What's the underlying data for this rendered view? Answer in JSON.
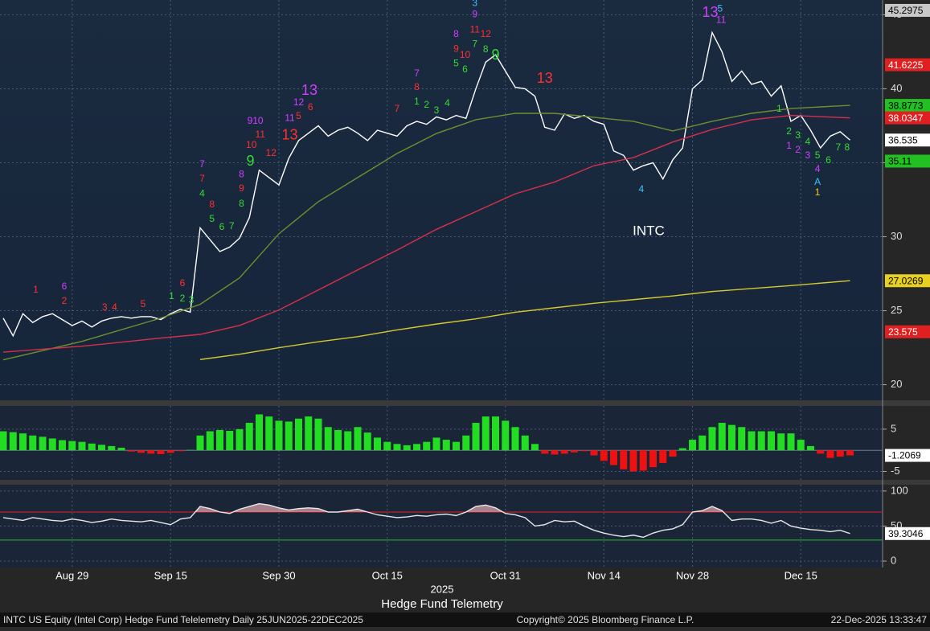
{
  "chart_data": [
    {
      "type": "line",
      "title": "INTC",
      "ylim": [
        19,
        46
      ],
      "yticks": [
        20,
        25,
        30,
        35,
        40,
        45
      ],
      "grid": true,
      "series": [
        {
          "color": "#ffffff",
          "values": [
            24.5,
            23.3,
            24.8,
            24.2,
            24.6,
            24.8,
            24.4,
            24.0,
            24.3,
            23.9,
            24.3,
            24.5,
            24.6,
            24.5,
            24.6,
            24.6,
            24.4,
            24.8,
            25.1,
            24.9,
            30.6,
            29.8,
            29.0,
            29.3,
            29.9,
            31.3,
            34.5,
            34.0,
            33.5,
            35.3,
            36.5,
            37.0,
            37.5,
            36.8,
            37.2,
            37.4,
            37.0,
            36.5,
            37.2,
            37.0,
            36.8,
            37.5,
            37.8,
            37.6,
            38.1,
            37.9,
            38.2,
            38.0,
            40.0,
            41.8,
            42.3,
            41.2,
            40.1,
            40.0,
            39.5,
            37.4,
            37.2,
            38.3,
            38.0,
            38.2,
            37.8,
            37.6,
            35.8,
            35.5,
            34.5,
            34.8,
            35.0,
            33.9,
            35.2,
            36.0,
            40.0,
            40.6,
            43.8,
            42.5,
            40.5,
            41.2,
            40.3,
            40.5,
            39.5,
            40.2,
            37.8,
            38.2,
            37.2,
            36.0,
            36.8,
            37.1,
            36.535
          ]
        },
        {
          "color": "#6f8f2f",
          "x": [
            0,
            8,
            16,
            20,
            24,
            28,
            32,
            36,
            40,
            44,
            48,
            52,
            56,
            60,
            64,
            68,
            72,
            76,
            80,
            86
          ],
          "values": [
            21.68,
            22.93,
            24.5,
            25.43,
            27.22,
            30.2,
            32.37,
            34.0,
            35.63,
            36.98,
            37.91,
            38.34,
            38.34,
            38.07,
            37.8,
            37.15,
            37.8,
            38.34,
            38.67,
            38.88
          ]
        },
        {
          "color": "#d8304a",
          "x": [
            0,
            8,
            16,
            20,
            24,
            28,
            32,
            36,
            40,
            44,
            48,
            52,
            56,
            60,
            64,
            68,
            72,
            76,
            80,
            86
          ],
          "values": [
            22.2,
            22.6,
            23.15,
            23.4,
            24.0,
            25.05,
            26.4,
            27.76,
            29.1,
            30.5,
            31.7,
            32.9,
            33.7,
            34.8,
            35.35,
            36.4,
            37.25,
            37.9,
            38.2,
            38.03
          ]
        },
        {
          "color": "#d8c830",
          "x": [
            20,
            24,
            28,
            32,
            36,
            40,
            44,
            48,
            52,
            56,
            60,
            64,
            68,
            72,
            76,
            80,
            86
          ],
          "values": [
            21.7,
            22.06,
            22.5,
            22.9,
            23.25,
            23.7,
            24.1,
            24.45,
            24.9,
            25.2,
            25.5,
            25.75,
            26.0,
            26.3,
            26.5,
            26.7,
            27.03
          ]
        }
      ],
      "price_tags": [
        {
          "value": 45.2975,
          "color": "#c8c8c8",
          "text_color": "#000000"
        },
        {
          "value": 41.6225,
          "color": "#e02020",
          "text_color": "#ffffff"
        },
        {
          "value": 38.8773,
          "color": "#22c022",
          "text_color": "#000000"
        },
        {
          "value": 38.0347,
          "color": "#e02020",
          "text_color": "#ffffff"
        },
        {
          "value": 36.535,
          "color": "#ffffff",
          "text_color": "#000000"
        },
        {
          "value": 35.11,
          "color": "#22c022",
          "text_color": "#000000"
        },
        {
          "value": 27.0269,
          "color": "#e8d020",
          "text_color": "#000000"
        },
        {
          "value": 23.575,
          "color": "#e02020",
          "text_color": "#ffffff"
        }
      ],
      "annotations": [
        {
          "text": "1",
          "x": 3.3,
          "y": 26.4,
          "color": "#ff3030"
        },
        {
          "text": "6",
          "x": 6.2,
          "y": 26.62,
          "color": "#d040ff"
        },
        {
          "text": "2",
          "x": 6.2,
          "y": 25.64,
          "color": "#ff3030"
        },
        {
          "text": "3",
          "x": 10.3,
          "y": 25.21,
          "color": "#ff3030"
        },
        {
          "text": "4",
          "x": 11.3,
          "y": 25.21,
          "color": "#ff3030"
        },
        {
          "text": "5",
          "x": 14.2,
          "y": 25.43,
          "color": "#ff3030"
        },
        {
          "text": "6",
          "x": 18.2,
          "y": 26.84,
          "color": "#ff3030"
        },
        {
          "text": "1",
          "x": 17.1,
          "y": 25.97,
          "color": "#33dd33"
        },
        {
          "text": "2",
          "x": 18.2,
          "y": 25.8,
          "color": "#33dd33"
        },
        {
          "text": "3",
          "x": 19.1,
          "y": 25.7,
          "color": "#33dd33"
        },
        {
          "text": "7",
          "x": 20.2,
          "y": 34.87,
          "color": "#d040ff"
        },
        {
          "text": "7",
          "x": 20.2,
          "y": 33.89,
          "color": "#ff3030"
        },
        {
          "text": "4",
          "x": 20.2,
          "y": 32.9,
          "color": "#33dd33"
        },
        {
          "text": "8",
          "x": 21.2,
          "y": 32.15,
          "color": "#ff3030"
        },
        {
          "text": "5",
          "x": 21.2,
          "y": 31.18,
          "color": "#33dd33"
        },
        {
          "text": "6",
          "x": 22.2,
          "y": 30.63,
          "color": "#33dd33"
        },
        {
          "text": "7",
          "x": 23.2,
          "y": 30.69,
          "color": "#33dd33"
        },
        {
          "text": "8",
          "x": 24.2,
          "y": 32.2,
          "color": "#33dd33"
        },
        {
          "text": "9",
          "x": 24.2,
          "y": 33.24,
          "color": "#ff3030"
        },
        {
          "text": "8",
          "x": 24.2,
          "y": 34.2,
          "color": "#d040ff"
        },
        {
          "text": "9",
          "x": 25.1,
          "y": 35.08,
          "color": "#33dd33"
        },
        {
          "text": "910",
          "x": 25.6,
          "y": 37.8,
          "color": "#d040ff"
        },
        {
          "text": "11",
          "x": 26.1,
          "y": 36.87,
          "color": "#ff3030"
        },
        {
          "text": "10",
          "x": 25.2,
          "y": 36.17,
          "color": "#ff3030"
        },
        {
          "text": "12",
          "x": 27.2,
          "y": 35.63,
          "color": "#ff3030"
        },
        {
          "text": "13",
          "x": 29.1,
          "y": 36.82,
          "color": "#ff3030"
        },
        {
          "text": "11",
          "x": 29.1,
          "y": 38.0,
          "color": "#d040ff"
        },
        {
          "text": "12",
          "x": 30.0,
          "y": 39.05,
          "color": "#d040ff"
        },
        {
          "text": "5",
          "x": 30.0,
          "y": 38.12,
          "color": "#ff3030"
        },
        {
          "text": "6",
          "x": 31.2,
          "y": 38.72,
          "color": "#ff3030"
        },
        {
          "text": "13",
          "x": 31.1,
          "y": 39.86,
          "color": "#d040ff"
        },
        {
          "text": "7",
          "x": 42.0,
          "y": 41.0,
          "color": "#d040ff"
        },
        {
          "text": "8",
          "x": 42.0,
          "y": 40.08,
          "color": "#ff3030"
        },
        {
          "text": "7",
          "x": 40.0,
          "y": 38.61,
          "color": "#ff3030"
        },
        {
          "text": "1",
          "x": 42.0,
          "y": 39.1,
          "color": "#33dd33"
        },
        {
          "text": "2",
          "x": 43.0,
          "y": 38.88,
          "color": "#33dd33"
        },
        {
          "text": "3",
          "x": 44.0,
          "y": 38.5,
          "color": "#33dd33"
        },
        {
          "text": "4",
          "x": 45.1,
          "y": 38.99,
          "color": "#33dd33"
        },
        {
          "text": "3",
          "x": 47.9,
          "y": 45.77,
          "color": "#40c0ff"
        },
        {
          "text": "9",
          "x": 47.9,
          "y": 45.01,
          "color": "#d040ff"
        },
        {
          "text": "8",
          "x": 46.0,
          "y": 43.66,
          "color": "#d040ff"
        },
        {
          "text": "9",
          "x": 46.0,
          "y": 42.68,
          "color": "#ff3030"
        },
        {
          "text": "11",
          "x": 47.9,
          "y": 43.98,
          "color": "#ff3030"
        },
        {
          "text": "12",
          "x": 49.0,
          "y": 43.66,
          "color": "#ff3030"
        },
        {
          "text": "10",
          "x": 46.9,
          "y": 42.25,
          "color": "#ff3030"
        },
        {
          "text": "5",
          "x": 46.0,
          "y": 41.7,
          "color": "#33dd33"
        },
        {
          "text": "7",
          "x": 47.9,
          "y": 43.0,
          "color": "#33dd33"
        },
        {
          "text": "6",
          "x": 46.9,
          "y": 41.27,
          "color": "#33dd33"
        },
        {
          "text": "8",
          "x": 49.0,
          "y": 42.63,
          "color": "#33dd33"
        },
        {
          "text": "9",
          "x": 50.0,
          "y": 42.25,
          "color": "#33dd33"
        },
        {
          "text": "13",
          "x": 55.0,
          "y": 40.67,
          "color": "#ff3030"
        },
        {
          "text": "4",
          "x": 64.8,
          "y": 33.18,
          "color": "#40c0ff"
        },
        {
          "text": "13",
          "x": 71.8,
          "y": 45.12,
          "color": "#d040ff"
        },
        {
          "text": "5",
          "x": 72.8,
          "y": 45.39,
          "color": "#40c0ff"
        },
        {
          "text": "11",
          "x": 72.9,
          "y": 44.63,
          "color": "#d040ff"
        },
        {
          "text": "1",
          "x": 78.8,
          "y": 38.61,
          "color": "#33dd33"
        },
        {
          "text": "2",
          "x": 79.8,
          "y": 37.09,
          "color": "#33dd33"
        },
        {
          "text": "3",
          "x": 80.7,
          "y": 36.82,
          "color": "#33dd33"
        },
        {
          "text": "4",
          "x": 81.7,
          "y": 36.39,
          "color": "#33dd33"
        },
        {
          "text": "5",
          "x": 82.7,
          "y": 35.46,
          "color": "#33dd33"
        },
        {
          "text": "6",
          "x": 83.8,
          "y": 35.14,
          "color": "#33dd33"
        },
        {
          "text": "7",
          "x": 84.8,
          "y": 36.0,
          "color": "#33dd33"
        },
        {
          "text": "8",
          "x": 85.7,
          "y": 36.0,
          "color": "#33dd33"
        },
        {
          "text": "1",
          "x": 79.8,
          "y": 36.11,
          "color": "#d040ff"
        },
        {
          "text": "2",
          "x": 80.7,
          "y": 35.84,
          "color": "#d040ff"
        },
        {
          "text": "3",
          "x": 81.7,
          "y": 35.46,
          "color": "#d040ff"
        },
        {
          "text": "4",
          "x": 82.7,
          "y": 34.54,
          "color": "#d040ff"
        },
        {
          "text": "A",
          "x": 82.7,
          "y": 33.67,
          "color": "#40c0ff"
        },
        {
          "text": "1",
          "x": 82.7,
          "y": 32.97,
          "color": "#e8d020"
        }
      ]
    },
    {
      "type": "bar",
      "ylim": [
        -7,
        10.5
      ],
      "yticks": [
        -5,
        5
      ],
      "grid": true,
      "positive_color": "#22dd22",
      "negative_color": "#ee1111",
      "values": [
        4.5,
        4.3,
        4.0,
        3.5,
        3.2,
        2.8,
        2.4,
        2.2,
        2.0,
        1.6,
        1.3,
        1.0,
        0.6,
        -0.3,
        -0.6,
        -0.8,
        -0.9,
        -0.6,
        -0.2,
        0.1,
        3.5,
        4.5,
        4.8,
        4.6,
        5.0,
        6.5,
        8.5,
        8.0,
        7.0,
        6.8,
        7.5,
        8.0,
        7.5,
        5.5,
        4.8,
        4.5,
        5.5,
        4.2,
        3.0,
        2.0,
        1.5,
        1.2,
        1.5,
        2.0,
        3.0,
        2.5,
        2.0,
        3.5,
        6.5,
        8.0,
        8.0,
        7.0,
        5.5,
        3.5,
        1.5,
        -0.8,
        -1.0,
        -0.8,
        -0.5,
        -0.2,
        -1.2,
        -2.5,
        -3.5,
        -4.5,
        -5.0,
        -4.8,
        -4.0,
        -3.0,
        -1.5,
        0.5,
        2.5,
        3.5,
        5.5,
        6.5,
        6.0,
        5.5,
        4.5,
        4.5,
        4.5,
        4.0,
        4.0,
        2.5,
        1.0,
        -0.8,
        -1.8,
        -1.5,
        -1.2069
      ],
      "price_tags": [
        {
          "value": -1.2069,
          "color": "#ffffff",
          "text_color": "#000000"
        }
      ]
    },
    {
      "type": "line",
      "ylim": [
        -8,
        109
      ],
      "yticks": [
        0,
        50,
        100
      ],
      "grid": true,
      "reference_lines": [
        {
          "value": 70,
          "color": "#e02020"
        },
        {
          "value": 30,
          "color": "#20c020"
        }
      ],
      "series": [
        {
          "color": "#e8e8e8",
          "values": [
            62,
            60,
            58,
            62,
            60,
            58,
            57,
            60,
            58,
            55,
            57,
            60,
            58,
            57,
            56,
            58,
            55,
            52,
            60,
            62,
            78,
            75,
            70,
            68,
            74,
            78,
            82,
            80,
            76,
            73,
            75,
            76,
            75,
            70,
            70,
            72,
            74,
            70,
            66,
            64,
            62,
            63,
            65,
            64,
            66,
            67,
            65,
            70,
            78,
            80,
            76,
            68,
            66,
            62,
            50,
            52,
            58,
            56,
            57,
            50,
            44,
            40,
            37,
            35,
            37,
            34,
            40,
            44,
            46,
            52,
            70,
            72,
            78,
            72,
            58,
            60,
            60,
            58,
            54,
            58,
            50,
            47,
            45,
            44,
            42,
            44,
            39.3046
          ]
        }
      ],
      "price_tags": [
        {
          "value": 39.3046,
          "color": "#ffffff",
          "text_color": "#000000"
        }
      ],
      "xticks": [
        {
          "value": 7,
          "label": "Aug 29"
        },
        {
          "value": 17,
          "label": "Sep 15"
        },
        {
          "value": 28,
          "label": "Sep 30"
        },
        {
          "value": 39,
          "label": "Oct 15"
        },
        {
          "value": 51,
          "label": "Oct 31"
        },
        {
          "value": 61,
          "label": "Nov 14"
        },
        {
          "value": 70,
          "label": "Nov 28"
        },
        {
          "value": 81,
          "label": "Dec 15"
        }
      ],
      "year_label": "2025"
    }
  ],
  "caption": "Hedge Fund Telemetry",
  "footer": {
    "left": "INTC US Equity (Intel Corp) Hedge Fund Telelemetry Daily 25JUN2025-22DEC2025",
    "center": "Copyright© 2025 Bloomberg Finance L.P.",
    "right": "22-Dec-2025 13:33:47"
  }
}
